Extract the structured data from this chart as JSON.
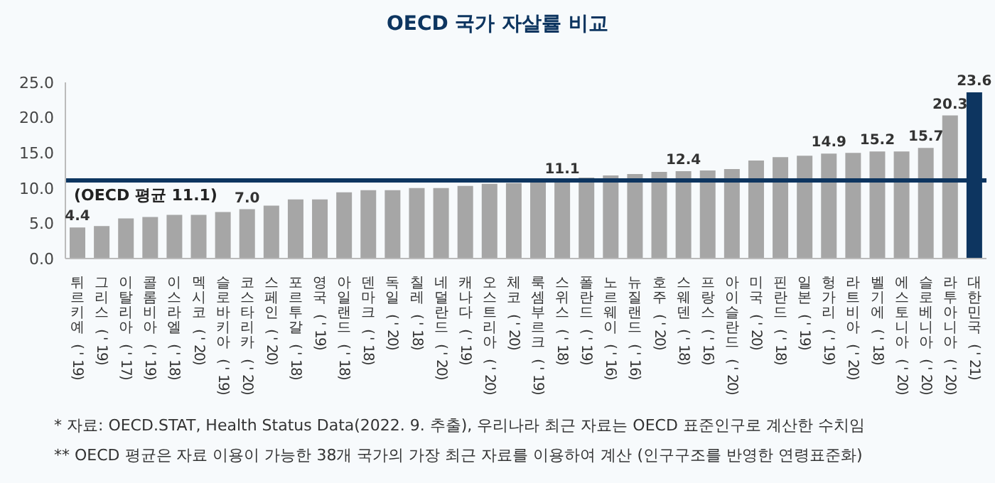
{
  "chart_data": {
    "type": "bar",
    "title": "OECD 국가 자살률 비교",
    "categories": [
      "튀르키예 ('19)",
      "그리스 ('19)",
      "이탈리아 ('17)",
      "콜롬비아 ('19)",
      "이스라엘 ('18)",
      "멕시코 ('20)",
      "슬로바키아 ('19)",
      "코스타리카 ('20)",
      "스페인 ('20)",
      "포르투갈 ('18)",
      "영국 ('19)",
      "아일랜드 ('18)",
      "덴마크 ('18)",
      "독일 ('20)",
      "칠레 ('18)",
      "네덜란드 ('20)",
      "캐나다 ('19)",
      "오스트리아 ('20)",
      "체코 ('20)",
      "룩셈부르크 ('19)",
      "스위스 ('18)",
      "폴란드 ('19)",
      "노르웨이 ('16)",
      "뉴질랜드 ('16)",
      "호주 ('20)",
      "스웨덴 ('18)",
      "프랑스 ('16)",
      "아이슬란드 ('20)",
      "미국 ('20)",
      "핀란드 ('18)",
      "일본 ('19)",
      "헝가리 ('19)",
      "라트비아 ('20)",
      "벨기에 ('18)",
      "에스토니아 ('20)",
      "슬로베니아 ('20)",
      "라투아니아 ('20)",
      "대한민국 ('21)"
    ],
    "values": [
      4.4,
      4.6,
      5.7,
      5.9,
      6.2,
      6.2,
      6.6,
      7.0,
      7.5,
      8.4,
      8.4,
      9.4,
      9.7,
      9.7,
      10.0,
      10.0,
      10.3,
      10.6,
      10.7,
      10.9,
      11.1,
      11.5,
      11.8,
      12.0,
      12.3,
      12.4,
      12.5,
      12.7,
      13.9,
      14.4,
      14.6,
      14.9,
      15.0,
      15.2,
      15.2,
      15.7,
      20.3,
      23.6
    ],
    "value_labels": [
      "4.4",
      null,
      null,
      null,
      null,
      null,
      null,
      "7.0",
      null,
      null,
      null,
      null,
      null,
      null,
      null,
      null,
      null,
      null,
      null,
      null,
      "11.1",
      null,
      null,
      null,
      null,
      "12.4",
      null,
      null,
      null,
      null,
      null,
      "14.9",
      null,
      "15.2",
      null,
      "15.7",
      "20.3",
      "23.6"
    ],
    "colors": [
      "#a6a6a6",
      "#a6a6a6",
      "#a6a6a6",
      "#a6a6a6",
      "#a6a6a6",
      "#a6a6a6",
      "#a6a6a6",
      "#a6a6a6",
      "#a6a6a6",
      "#a6a6a6",
      "#a6a6a6",
      "#a6a6a6",
      "#a6a6a6",
      "#a6a6a6",
      "#a6a6a6",
      "#a6a6a6",
      "#a6a6a6",
      "#a6a6a6",
      "#a6a6a6",
      "#a6a6a6",
      "#a6a6a6",
      "#a6a6a6",
      "#a6a6a6",
      "#a6a6a6",
      "#a6a6a6",
      "#a6a6a6",
      "#a6a6a6",
      "#a6a6a6",
      "#a6a6a6",
      "#a6a6a6",
      "#a6a6a6",
      "#a6a6a6",
      "#a6a6a6",
      "#a6a6a6",
      "#a6a6a6",
      "#a6a6a6",
      "#a6a6a6",
      "#0d3560"
    ],
    "ylim": [
      0,
      25
    ],
    "yticks": [
      {
        "value": 0,
        "label": "0.0"
      },
      {
        "value": 5,
        "label": "5.0"
      },
      {
        "value": 10,
        "label": "10.0"
      },
      {
        "value": 15,
        "label": "15.0"
      },
      {
        "value": 20,
        "label": "20.0"
      },
      {
        "value": 25,
        "label": "25.0"
      }
    ],
    "grid": false,
    "legend": false,
    "ref_lines": [
      {
        "axis": "y",
        "value": 11.1,
        "label": "(OECD 평균 11.1)",
        "color": "#0d3560"
      }
    ],
    "annotations": [
      "* 자료: OECD.STAT, Health Status Data(2022. 9. 추출), 우리나라 최근 자료는 OECD 표준인구로 계산한 수치임",
      "** OECD 평균은 자료 이용이 가능한 38개 국가의 가장 최근 자료를 이용하여 계산 (인구구조를 반영한 연령표준화)"
    ]
  }
}
